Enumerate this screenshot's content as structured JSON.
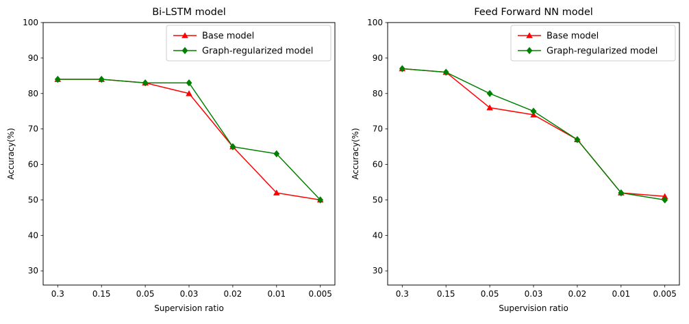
{
  "figure": {
    "background": "#ffffff",
    "text_color": "#000000",
    "spine_color": "#000000",
    "legend_border_color": "#cccccc",
    "legend_background": "#ffffff"
  },
  "chart_data": [
    {
      "type": "line",
      "title": "Bi-LSTM model",
      "xlabel": "Supervision ratio",
      "ylabel": "Accuracy(%)",
      "categories": [
        "0.3",
        "0.15",
        "0.05",
        "0.03",
        "0.02",
        "0.01",
        "0.005"
      ],
      "ylim": [
        26,
        100
      ],
      "yticks": [
        30,
        40,
        50,
        60,
        70,
        80,
        90,
        100
      ],
      "grid": false,
      "legend_position": "upper right",
      "series": [
        {
          "name": "Base model",
          "color": "#ff0000",
          "marker": "triangle",
          "values": [
            84,
            84,
            83,
            80,
            65,
            52,
            50
          ]
        },
        {
          "name": "Graph-regularized model",
          "color": "#008000",
          "marker": "diamond",
          "values": [
            84,
            84,
            83,
            83,
            65,
            63,
            50
          ]
        }
      ]
    },
    {
      "type": "line",
      "title": "Feed Forward NN model",
      "xlabel": "Supervision ratio",
      "ylabel": "Accuracy(%)",
      "categories": [
        "0.3",
        "0.15",
        "0.05",
        "0.03",
        "0.02",
        "0.01",
        "0.005"
      ],
      "ylim": [
        26,
        100
      ],
      "yticks": [
        30,
        40,
        50,
        60,
        70,
        80,
        90,
        100
      ],
      "grid": false,
      "legend_position": "upper right",
      "series": [
        {
          "name": "Base model",
          "color": "#ff0000",
          "marker": "triangle",
          "values": [
            87,
            86,
            76,
            74,
            67,
            52,
            51
          ]
        },
        {
          "name": "Graph-regularized model",
          "color": "#008000",
          "marker": "diamond",
          "values": [
            87,
            86,
            80,
            75,
            67,
            52,
            50
          ]
        }
      ]
    }
  ]
}
